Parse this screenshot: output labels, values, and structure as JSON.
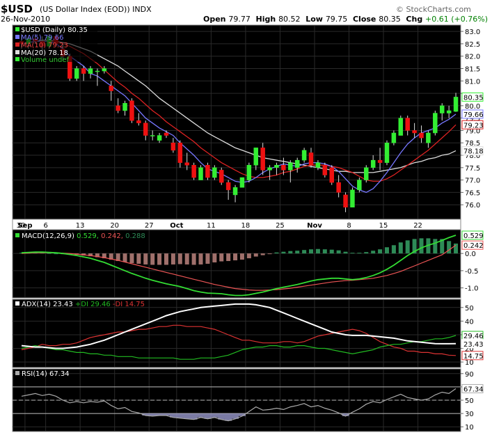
{
  "header": {
    "ticker": "$USD",
    "description": "(US Dollar Index (EOD))",
    "exchange": "INDX",
    "brand": "© StockCharts.com",
    "date": "26-Nov-2010",
    "open_label": "Open",
    "open": "79.77",
    "high_label": "High",
    "high": "80.52",
    "low_label": "Low",
    "low": "79.75",
    "close_label": "Close",
    "close": "80.35",
    "chg_label": "Chg",
    "chg": "+0.61 (+0.76%)"
  },
  "legend": {
    "price": "$USD (Daily) 80.35",
    "ma5": "MA(5) 79.66",
    "ma10": "MA(10) 79.23",
    "ma20": "MA(20) 78.18",
    "volume": "Volume undef",
    "macd_name": "MACD(12,26,9)",
    "macd_v1": "0.529",
    "macd_v2": "0.242",
    "macd_v3": "0.288",
    "adx_name": "ADX(14)",
    "adx_v": "23.43",
    "pdi": "+DI 29.46",
    "mdi": "-DI 14.75",
    "rsi": "RSI(14) 67.34"
  },
  "colors": {
    "background": "#000000",
    "grid": "#2a2a2a",
    "up": "#33ee33",
    "down": "#ee1111",
    "ma5": "#7777ff",
    "ma10": "#dd2222",
    "ma20": "#dddddd",
    "macd_line": "#33dd33",
    "signal_line": "#ee5555",
    "hist": "#2e8b57",
    "hist_neg": "#a0706b",
    "adx": "#ffffff",
    "pdi": "#22bb22",
    "mdi": "#dd3333",
    "rsi": "#aaaaaa",
    "rsi_fill": "#9999cc"
  },
  "chart_data": [
    {
      "type": "candlestick",
      "name": "price",
      "x_labels": [
        "30",
        "Sep",
        "6",
        "13",
        "20",
        "27",
        "Oct",
        "11",
        "18",
        "25",
        "Nov",
        "8",
        "15",
        "22"
      ],
      "x_label_bar_index": [
        0,
        1,
        4,
        9,
        14,
        19,
        23,
        28,
        33,
        38,
        43,
        48,
        53,
        58
      ],
      "y_ticks": [
        76.0,
        76.5,
        77.0,
        77.5,
        78.0,
        78.5,
        79.0,
        79.5,
        80.0,
        80.5,
        81.0,
        81.5,
        82.0,
        82.5,
        83.0
      ],
      "y_tick_labels": [
        "76.0",
        "76.5",
        "77.0",
        "77.5",
        "78.0",
        "78.5",
        "79.0",
        "79.5",
        "80.0",
        "",
        "81.0",
        "81.5",
        "82.0",
        "82.5",
        "83.0"
      ],
      "ylim": [
        75.5,
        83.2
      ],
      "ohlc": [
        [
          82.6,
          82.9,
          82.3,
          82.5
        ],
        [
          82.5,
          82.8,
          82.3,
          82.7
        ],
        [
          82.7,
          82.9,
          82.5,
          82.6
        ],
        [
          82.6,
          82.8,
          82.2,
          82.4
        ],
        [
          82.4,
          82.9,
          82.3,
          82.8
        ],
        [
          82.8,
          82.9,
          82.4,
          82.5
        ],
        [
          82.3,
          82.5,
          81.8,
          82.0
        ],
        [
          82.0,
          82.1,
          81.0,
          81.1
        ],
        [
          81.1,
          81.6,
          81.0,
          81.5
        ],
        [
          81.5,
          81.6,
          81.0,
          81.3
        ],
        [
          81.3,
          81.6,
          81.1,
          81.5
        ],
        [
          81.4,
          81.5,
          80.8,
          81.4
        ],
        [
          81.4,
          81.6,
          81.3,
          81.5
        ],
        [
          80.8,
          81.0,
          80.2,
          80.6
        ],
        [
          80.0,
          80.3,
          79.7,
          79.8
        ],
        [
          79.8,
          80.2,
          79.6,
          80.1
        ],
        [
          80.2,
          80.3,
          79.3,
          79.4
        ],
        [
          79.4,
          79.7,
          79.2,
          79.3
        ],
        [
          79.3,
          79.4,
          78.6,
          78.8
        ],
        [
          78.8,
          79.0,
          78.6,
          78.8
        ],
        [
          78.6,
          78.9,
          78.5,
          78.8
        ],
        [
          78.9,
          79.0,
          78.7,
          78.8
        ],
        [
          78.5,
          78.7,
          78.1,
          78.2
        ],
        [
          78.5,
          78.6,
          77.5,
          77.7
        ],
        [
          77.7,
          78.1,
          77.4,
          77.6
        ],
        [
          77.6,
          77.7,
          77.0,
          77.1
        ],
        [
          77.0,
          77.6,
          77.0,
          77.5
        ],
        [
          77.6,
          77.7,
          77.0,
          77.1
        ],
        [
          77.1,
          77.6,
          77.0,
          77.5
        ],
        [
          77.4,
          77.5,
          76.8,
          76.9
        ],
        [
          76.9,
          77.0,
          76.2,
          76.6
        ],
        [
          76.4,
          76.8,
          76.1,
          76.7
        ],
        [
          76.7,
          77.1,
          76.7,
          77.1
        ],
        [
          77.0,
          77.7,
          76.9,
          77.6
        ],
        [
          77.6,
          78.3,
          77.4,
          78.3
        ],
        [
          78.3,
          78.5,
          77.2,
          77.4
        ],
        [
          77.4,
          77.6,
          77.0,
          77.5
        ],
        [
          77.5,
          77.7,
          77.2,
          77.6
        ],
        [
          77.6,
          77.9,
          77.2,
          77.4
        ],
        [
          77.4,
          77.8,
          76.9,
          77.7
        ],
        [
          77.5,
          77.9,
          77.3,
          77.8
        ],
        [
          77.8,
          78.3,
          77.7,
          78.2
        ],
        [
          78.1,
          78.3,
          77.5,
          77.6
        ],
        [
          77.5,
          77.8,
          77.4,
          77.7
        ],
        [
          77.6,
          77.7,
          77.1,
          77.2
        ],
        [
          77.5,
          77.6,
          76.8,
          76.9
        ],
        [
          76.9,
          77.2,
          76.3,
          76.5
        ],
        [
          76.4,
          76.5,
          75.7,
          75.9
        ],
        [
          75.9,
          76.7,
          75.9,
          76.6
        ],
        [
          76.6,
          77.1,
          76.5,
          77.0
        ],
        [
          77.0,
          77.6,
          76.9,
          77.5
        ],
        [
          77.5,
          78.0,
          77.4,
          77.8
        ],
        [
          77.8,
          78.3,
          77.4,
          77.7
        ],
        [
          77.7,
          78.6,
          77.6,
          78.5
        ],
        [
          78.5,
          79.0,
          78.4,
          78.9
        ],
        [
          78.8,
          79.6,
          78.8,
          79.5
        ],
        [
          79.5,
          79.6,
          78.8,
          79.0
        ],
        [
          79.0,
          79.3,
          78.7,
          78.9
        ],
        [
          78.9,
          79.2,
          78.5,
          78.7
        ],
        [
          78.5,
          79.0,
          78.3,
          78.9
        ],
        [
          78.9,
          79.8,
          78.8,
          79.7
        ],
        [
          79.7,
          80.1,
          79.4,
          80.0
        ],
        [
          79.7,
          80.0,
          79.5,
          79.8
        ],
        [
          79.77,
          80.52,
          79.75,
          80.35
        ]
      ],
      "ma": [
        {
          "name": "MA(5)",
          "color": "#7777ff",
          "values": [
            82.5,
            82.55,
            82.6,
            82.6,
            82.6,
            82.5,
            82.3,
            82.0,
            81.8,
            81.6,
            81.3,
            81.2,
            81.0,
            80.8,
            80.6,
            80.4,
            80.1,
            79.8,
            79.5,
            79.3,
            79.1,
            78.95,
            78.8,
            78.5,
            78.25,
            78.0,
            77.7,
            77.45,
            77.35,
            77.25,
            77.1,
            76.95,
            76.9,
            76.95,
            77.1,
            77.3,
            77.45,
            77.55,
            77.65,
            77.6,
            77.55,
            77.65,
            77.7,
            77.7,
            77.65,
            77.55,
            77.35,
            77.05,
            76.75,
            76.6,
            76.5,
            76.65,
            76.95,
            77.3,
            77.7,
            78.1,
            78.45,
            78.7,
            78.9,
            79.0,
            79.1,
            79.3,
            79.45,
            79.66
          ]
        },
        {
          "name": "MA(10)",
          "color": "#dd2222",
          "values": [
            82.5,
            82.55,
            82.6,
            82.6,
            82.6,
            82.6,
            82.5,
            82.4,
            82.25,
            82.1,
            81.9,
            81.7,
            81.45,
            81.2,
            80.95,
            80.75,
            80.5,
            80.3,
            80.05,
            79.8,
            79.6,
            79.35,
            79.15,
            78.95,
            78.75,
            78.55,
            78.3,
            78.1,
            77.9,
            77.7,
            77.55,
            77.4,
            77.25,
            77.15,
            77.1,
            77.1,
            77.15,
            77.2,
            77.3,
            77.35,
            77.45,
            77.55,
            77.6,
            77.6,
            77.6,
            77.55,
            77.5,
            77.4,
            77.3,
            77.15,
            77.0,
            76.95,
            76.95,
            77.05,
            77.2,
            77.4,
            77.6,
            77.8,
            78.0,
            78.2,
            78.45,
            78.7,
            78.95,
            79.23
          ]
        },
        {
          "name": "MA(20)",
          "color": "#dddddd",
          "values": [
            82.5,
            82.55,
            82.6,
            82.65,
            82.65,
            82.6,
            82.55,
            82.5,
            82.4,
            82.3,
            82.2,
            82.05,
            81.9,
            81.75,
            81.6,
            81.4,
            81.2,
            81.0,
            80.8,
            80.55,
            80.3,
            80.1,
            79.9,
            79.7,
            79.5,
            79.3,
            79.1,
            78.9,
            78.75,
            78.6,
            78.45,
            78.3,
            78.2,
            78.1,
            78.0,
            77.9,
            77.85,
            77.8,
            77.75,
            77.7,
            77.65,
            77.6,
            77.55,
            77.5,
            77.45,
            77.4,
            77.35,
            77.35,
            77.3,
            77.3,
            77.3,
            77.3,
            77.35,
            77.4,
            77.45,
            77.5,
            77.6,
            77.7,
            77.75,
            77.85,
            77.9,
            78.0,
            78.05,
            78.18
          ]
        }
      ],
      "last_value_labels": [
        {
          "text": "80.35",
          "value": 80.35,
          "color": "#33ee33"
        },
        {
          "text": "79.66",
          "value": 79.66,
          "color": "#7777ff"
        },
        {
          "text": "79.23",
          "value": 79.23,
          "color": "#dd2222"
        },
        {
          "text": "78.18",
          "value": 78.18,
          "color": "#dddddd"
        }
      ]
    },
    {
      "type": "line",
      "name": "MACD(12,26,9)",
      "y_ticks": [
        0.0,
        -0.5,
        -1.0
      ],
      "y_tick_labels": [
        "0.0",
        "-0.5",
        "-1.0"
      ],
      "ylim": [
        -1.25,
        0.65
      ],
      "macd": [
        0.02,
        0.03,
        0.04,
        0.04,
        0.03,
        0.02,
        0.0,
        -0.03,
        -0.06,
        -0.1,
        -0.14,
        -0.2,
        -0.26,
        -0.34,
        -0.42,
        -0.5,
        -0.58,
        -0.65,
        -0.72,
        -0.78,
        -0.83,
        -0.88,
        -0.92,
        -0.96,
        -1.02,
        -1.08,
        -1.12,
        -1.15,
        -1.16,
        -1.17,
        -1.2,
        -1.22,
        -1.22,
        -1.2,
        -1.16,
        -1.12,
        -1.07,
        -1.02,
        -0.98,
        -0.94,
        -0.9,
        -0.85,
        -0.8,
        -0.76,
        -0.74,
        -0.72,
        -0.72,
        -0.74,
        -0.76,
        -0.74,
        -0.7,
        -0.64,
        -0.56,
        -0.46,
        -0.34,
        -0.2,
        -0.06,
        0.06,
        0.16,
        0.24,
        0.3,
        0.38,
        0.46,
        0.529
      ],
      "signal": [
        0.0,
        0.01,
        0.02,
        0.02,
        0.02,
        0.02,
        0.01,
        0.0,
        -0.02,
        -0.04,
        -0.06,
        -0.09,
        -0.12,
        -0.16,
        -0.2,
        -0.25,
        -0.3,
        -0.35,
        -0.4,
        -0.45,
        -0.5,
        -0.55,
        -0.6,
        -0.65,
        -0.7,
        -0.75,
        -0.8,
        -0.85,
        -0.9,
        -0.94,
        -0.98,
        -1.02,
        -1.04,
        -1.06,
        -1.07,
        -1.07,
        -1.06,
        -1.05,
        -1.03,
        -1.01,
        -0.98,
        -0.95,
        -0.92,
        -0.89,
        -0.86,
        -0.83,
        -0.81,
        -0.79,
        -0.78,
        -0.76,
        -0.74,
        -0.72,
        -0.68,
        -0.64,
        -0.58,
        -0.52,
        -0.44,
        -0.36,
        -0.28,
        -0.2,
        -0.12,
        -0.04,
        0.1,
        0.242
      ],
      "histogram": [
        0.02,
        0.02,
        0.02,
        0.02,
        0.01,
        0.0,
        -0.01,
        -0.03,
        -0.04,
        -0.06,
        -0.08,
        -0.11,
        -0.14,
        -0.18,
        -0.22,
        -0.25,
        -0.28,
        -0.3,
        -0.32,
        -0.33,
        -0.33,
        -0.33,
        -0.32,
        -0.31,
        -0.32,
        -0.33,
        -0.32,
        -0.3,
        -0.26,
        -0.23,
        -0.22,
        -0.2,
        -0.18,
        -0.14,
        -0.09,
        -0.05,
        -0.01,
        0.03,
        0.05,
        0.07,
        0.08,
        0.1,
        0.12,
        0.13,
        0.12,
        0.11,
        0.09,
        0.05,
        0.02,
        0.02,
        0.04,
        0.08,
        0.12,
        0.18,
        0.24,
        0.32,
        0.38,
        0.42,
        0.44,
        0.44,
        0.42,
        0.42,
        0.36,
        0.288
      ],
      "last_value_labels": [
        {
          "text": "0.529",
          "value": 0.529,
          "color": "#33dd33"
        },
        {
          "text": "0.242",
          "value": 0.242,
          "color": "#ee5555"
        }
      ]
    },
    {
      "type": "line",
      "name": "ADX(14)",
      "y_ticks": [
        10,
        20,
        30,
        40,
        50
      ],
      "y_tick_labels": [
        "10",
        "20",
        "30",
        "40",
        "50"
      ],
      "ylim": [
        7,
        55
      ],
      "adx": [
        22,
        21.5,
        21,
        21,
        20.5,
        20,
        20,
        20.5,
        21,
        22,
        23,
        24.5,
        26,
        28,
        30,
        32,
        34,
        36,
        38,
        40,
        42,
        44,
        45.5,
        47,
        48,
        49,
        50,
        50.5,
        51,
        51.5,
        52,
        52.5,
        52.5,
        52.5,
        52,
        51,
        50,
        48,
        46,
        44,
        42,
        40,
        38,
        36,
        34,
        32,
        31,
        30,
        29.5,
        29.5,
        29.5,
        29,
        28.5,
        28,
        27.5,
        26.5,
        25.5,
        25,
        24.5,
        24,
        23.5,
        23.4,
        23.4,
        23.43
      ],
      "pdi": [
        20,
        21,
        22,
        21,
        20,
        19,
        19,
        18,
        17,
        17,
        16,
        16,
        15,
        15,
        14,
        14,
        14,
        13,
        13,
        13,
        13,
        13,
        13,
        12,
        12,
        12,
        13,
        13,
        13,
        14,
        15,
        17,
        19,
        20,
        21,
        21,
        22,
        22,
        21,
        21,
        22,
        22,
        21,
        20,
        20,
        19,
        18,
        17,
        16,
        17,
        18,
        19,
        21,
        22,
        23,
        23,
        24,
        25,
        25,
        26,
        27,
        27,
        28,
        29.46
      ],
      "mdi": [
        19,
        20,
        21,
        23,
        22,
        22,
        23,
        23,
        24,
        26,
        28,
        29,
        30,
        31,
        32,
        32,
        33,
        34,
        34,
        35,
        36,
        36,
        37,
        37,
        36,
        36,
        36,
        35,
        34,
        32,
        30,
        28,
        26,
        26,
        25,
        24,
        24,
        24,
        25,
        25,
        24,
        25,
        27,
        29,
        30,
        31,
        32,
        33,
        34,
        33,
        31,
        28,
        25,
        23,
        21,
        20,
        18,
        18,
        17,
        17,
        16,
        16,
        15,
        14.75
      ],
      "last_value_labels": [
        {
          "text": "29.46",
          "value": 29.46,
          "color": "#22bb22"
        },
        {
          "text": "23.43",
          "value": 23.43,
          "color": "#ffffff"
        },
        {
          "text": "14.75",
          "value": 14.75,
          "color": "#dd3333"
        }
      ]
    },
    {
      "type": "line",
      "name": "RSI(14)",
      "y_ticks": [
        10,
        30,
        50,
        70,
        90
      ],
      "y_tick_labels": [
        "10",
        "30",
        "50",
        "70",
        "90"
      ],
      "ylim": [
        5,
        95
      ],
      "reference_lines": [
        30,
        50,
        70
      ],
      "values": [
        56,
        58,
        60,
        57,
        59,
        56,
        50,
        46,
        48,
        46,
        48,
        47,
        49,
        42,
        37,
        39,
        33,
        31,
        27,
        26,
        27,
        27,
        24,
        23,
        22,
        21,
        24,
        22,
        24,
        21,
        19,
        22,
        26,
        33,
        40,
        35,
        36,
        38,
        36,
        40,
        42,
        45,
        40,
        42,
        38,
        35,
        31,
        26,
        32,
        37,
        44,
        48,
        46,
        51,
        55,
        59,
        54,
        52,
        50,
        52,
        58,
        62,
        60,
        67.34
      ],
      "last_value_labels": [
        {
          "text": "67.34",
          "value": 67.34,
          "color": "#aaaaaa"
        }
      ]
    }
  ]
}
